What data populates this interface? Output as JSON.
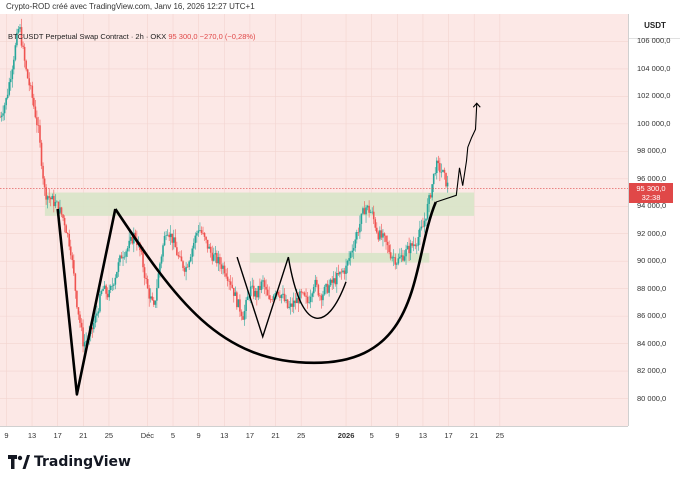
{
  "header": {
    "caption": "Crypto-ROD créé avec TradingView.com, Janv 16, 2026 12:27 UTC+1"
  },
  "legend": {
    "symbol": "BTCUSDT Perpetual Swap Contract · 2h · OKX",
    "price": "95 300,0",
    "change": "−270,0 (−0,28%)"
  },
  "axis": {
    "currency": "USDT"
  },
  "price_badge": {
    "price": "95 300,0",
    "countdown": "32:38"
  },
  "footer": {
    "brand": "TradingView"
  },
  "colors": {
    "background": "#fce8e6",
    "up": "#26a69a",
    "down": "#ef5350",
    "zone": "#d8e4c8",
    "drawing": "#000000",
    "badge": "#e04848"
  },
  "chart_data": {
    "type": "candlestick",
    "title": "",
    "ylim": [
      78000,
      108000
    ],
    "x_range": [
      8,
      106
    ],
    "y_ticks": [
      80000,
      82000,
      84000,
      86000,
      88000,
      90000,
      92000,
      94000,
      96000,
      98000,
      100000,
      102000,
      104000,
      106000
    ],
    "y_tick_labels": [
      "80 000,0",
      "82 000,0",
      "84 000,0",
      "86 000,0",
      "88 000,0",
      "90 000,0",
      "92 000,0",
      "94 000,0",
      "96 000,0",
      "98 000,0",
      "100 000,0",
      "102 000,0",
      "104 000,0",
      "106 000,0"
    ],
    "x_ticks": [
      {
        "x": 9,
        "label": "9"
      },
      {
        "x": 13,
        "label": "13"
      },
      {
        "x": 17,
        "label": "17"
      },
      {
        "x": 21,
        "label": "21"
      },
      {
        "x": 25,
        "label": "25"
      },
      {
        "x": 31,
        "label": "Déc"
      },
      {
        "x": 35,
        "label": "5"
      },
      {
        "x": 39,
        "label": "9"
      },
      {
        "x": 43,
        "label": "13"
      },
      {
        "x": 47,
        "label": "17"
      },
      {
        "x": 51,
        "label": "21"
      },
      {
        "x": 55,
        "label": "25"
      },
      {
        "x": 62,
        "label": "2026",
        "bold": true
      },
      {
        "x": 66,
        "label": "5"
      },
      {
        "x": 70,
        "label": "9"
      },
      {
        "x": 74,
        "label": "13"
      },
      {
        "x": 78,
        "label": "17"
      },
      {
        "x": 82,
        "label": "21"
      },
      {
        "x": 86,
        "label": "25"
      }
    ],
    "price_path": [
      [
        8,
        100500
      ],
      [
        9,
        101800
      ],
      [
        10,
        104500
      ],
      [
        11,
        107200
      ],
      [
        12,
        104000
      ],
      [
        13,
        102000
      ],
      [
        14,
        99500
      ],
      [
        15,
        95000
      ],
      [
        16,
        94500
      ],
      [
        17,
        94000
      ],
      [
        18,
        93000
      ],
      [
        19,
        91000
      ],
      [
        20,
        87000
      ],
      [
        21,
        84000
      ],
      [
        22,
        84500
      ],
      [
        23,
        86000
      ],
      [
        24,
        88000
      ],
      [
        25,
        87500
      ],
      [
        26,
        89000
      ],
      [
        27,
        90500
      ],
      [
        28,
        91000
      ],
      [
        29,
        92000
      ],
      [
        30,
        90500
      ],
      [
        31,
        88000
      ],
      [
        32,
        86500
      ],
      [
        33,
        90000
      ],
      [
        34,
        92500
      ],
      [
        35,
        91500
      ],
      [
        36,
        90000
      ],
      [
        37,
        89500
      ],
      [
        38,
        91000
      ],
      [
        39,
        92500
      ],
      [
        40,
        91500
      ],
      [
        41,
        90500
      ],
      [
        42,
        90000
      ],
      [
        43,
        89500
      ],
      [
        44,
        88500
      ],
      [
        45,
        87000
      ],
      [
        46,
        86000
      ],
      [
        47,
        88000
      ],
      [
        48,
        87500
      ],
      [
        49,
        88500
      ],
      [
        50,
        87000
      ],
      [
        51,
        88000
      ],
      [
        52,
        87500
      ],
      [
        53,
        86500
      ],
      [
        54,
        87000
      ],
      [
        55,
        87500
      ],
      [
        56,
        87000
      ],
      [
        57,
        88500
      ],
      [
        58,
        87500
      ],
      [
        59,
        88000
      ],
      [
        60,
        88500
      ],
      [
        61,
        89000
      ],
      [
        62,
        89500
      ],
      [
        63,
        91000
      ],
      [
        64,
        92500
      ],
      [
        65,
        94000
      ],
      [
        66,
        93500
      ],
      [
        67,
        92000
      ],
      [
        68,
        91500
      ],
      [
        69,
        90500
      ],
      [
        70,
        90000
      ],
      [
        71,
        90500
      ],
      [
        72,
        91000
      ],
      [
        73,
        91500
      ],
      [
        74,
        92500
      ],
      [
        75,
        94500
      ],
      [
        76,
        97000
      ],
      [
        77,
        96500
      ],
      [
        78,
        95300
      ]
    ],
    "zones": [
      {
        "x0": 15,
        "x1": 82,
        "y0": 93300,
        "y1": 95000
      },
      {
        "x0": 47,
        "x1": 75,
        "y0": 89900,
        "y1": 90600
      }
    ],
    "current_price": 95300,
    "drawings": {
      "w_pattern": [
        [
          17,
          93800
        ],
        [
          20,
          80300
        ],
        [
          26,
          93800
        ]
      ],
      "inner_w": [
        [
          45,
          90300
        ],
        [
          49,
          84500
        ],
        [
          53,
          90300
        ],
        [
          58,
          86500
        ],
        [
          62,
          88500
        ]
      ],
      "cup": {
        "left": [
          26,
          93800
        ],
        "bottom": [
          57,
          82600
        ],
        "right": [
          76,
          94300
        ]
      },
      "arrow": [
        [
          76,
          94300
        ],
        [
          79.2,
          94800
        ],
        [
          79.7,
          96800
        ],
        [
          80.2,
          95500
        ],
        [
          80.8,
          97300
        ],
        [
          81,
          98300
        ],
        [
          81.6,
          99000
        ],
        [
          82.2,
          99600
        ],
        [
          82.4,
          101500
        ]
      ]
    }
  }
}
